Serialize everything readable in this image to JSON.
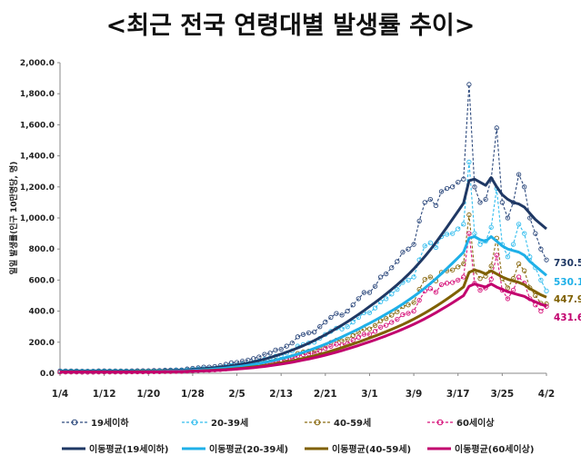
{
  "page_title": "<최근 전국 연령대별 발생률 추이>",
  "chart_data": {
    "type": "line",
    "title": "<최근 전국 연령대별 발생률 추이>",
    "ylabel": "일일 발생률(인구 10만명당, 명)",
    "xlabel": "",
    "ylim": [
      0,
      2000
    ],
    "yticks": [
      0,
      200,
      400,
      600,
      800,
      1000,
      1200,
      1400,
      1600,
      1800,
      2000
    ],
    "ytick_labels": [
      "0.0",
      "200.0",
      "400.0",
      "600.0",
      "800.0",
      "1,000.0",
      "1,200.0",
      "1,400.0",
      "1,600.0",
      "1,800.0",
      "2,000.0"
    ],
    "xticks": [
      0,
      8,
      16,
      24,
      32,
      40,
      48,
      56,
      64,
      72,
      80,
      88
    ],
    "xtick_labels": [
      "1/4",
      "1/12",
      "1/20",
      "1/28",
      "2/5",
      "2/13",
      "2/21",
      "3/1",
      "3/9",
      "3/17",
      "3/25",
      "4/2"
    ],
    "n_days": 89,
    "daily_series": [
      {
        "name": "19세이하",
        "color": "#2E4A7D",
        "values": [
          15,
          15,
          15,
          15,
          14,
          14,
          14,
          16,
          16,
          15,
          15,
          15,
          15,
          16,
          17,
          17,
          17,
          18,
          18,
          20,
          21,
          22,
          22,
          28,
          32,
          36,
          40,
          40,
          44,
          49,
          58,
          68,
          70,
          78,
          85,
          95,
          105,
          122,
          130,
          150,
          155,
          175,
          195,
          235,
          250,
          260,
          265,
          300,
          330,
          360,
          385,
          375,
          400,
          440,
          480,
          520,
          520,
          560,
          620,
          640,
          680,
          720,
          780,
          800,
          830,
          980,
          1100,
          1120,
          1080,
          1170,
          1190,
          1200,
          1230,
          1250,
          1860,
          1200,
          1100,
          1120,
          1250,
          1580,
          1100,
          1000,
          1100,
          1280,
          1200,
          1000,
          900,
          800,
          730
        ]
      },
      {
        "name": "20-39세",
        "color": "#33BDEE",
        "values": [
          12,
          12,
          12,
          12,
          11,
          11,
          11,
          12,
          12,
          12,
          12,
          12,
          12,
          13,
          13,
          13,
          14,
          14,
          15,
          16,
          17,
          18,
          18,
          22,
          25,
          28,
          30,
          30,
          33,
          37,
          43,
          50,
          52,
          58,
          63,
          70,
          78,
          90,
          98,
          110,
          115,
          130,
          145,
          175,
          185,
          195,
          200,
          225,
          250,
          270,
          290,
          285,
          300,
          330,
          360,
          390,
          390,
          420,
          460,
          480,
          510,
          540,
          585,
          600,
          620,
          730,
          820,
          840,
          810,
          880,
          895,
          900,
          930,
          960,
          1360,
          900,
          830,
          850,
          940,
          1190,
          830,
          750,
          830,
          960,
          900,
          750,
          680,
          600,
          530
        ]
      },
      {
        "name": "40-59세",
        "color": "#8A6A12",
        "values": [
          9,
          9,
          9,
          9,
          8,
          8,
          8,
          9,
          9,
          9,
          9,
          9,
          9,
          10,
          10,
          10,
          10,
          11,
          11,
          12,
          12,
          13,
          13,
          16,
          18,
          20,
          22,
          22,
          25,
          27,
          32,
          37,
          38,
          43,
          47,
          52,
          58,
          66,
          72,
          82,
          85,
          96,
          107,
          128,
          137,
          143,
          146,
          165,
          180,
          198,
          213,
          208,
          220,
          243,
          264,
          286,
          286,
          308,
          338,
          352,
          374,
          396,
          430,
          440,
          456,
          540,
          605,
          620,
          595,
          650,
          660,
          665,
          685,
          705,
          1020,
          660,
          610,
          625,
          690,
          870,
          610,
          550,
          610,
          705,
          660,
          550,
          500,
          450,
          447
        ]
      },
      {
        "name": "60세이상",
        "color": "#D6127A",
        "values": [
          8,
          8,
          8,
          8,
          7,
          7,
          7,
          8,
          8,
          8,
          8,
          8,
          8,
          9,
          9,
          9,
          9,
          10,
          10,
          11,
          11,
          12,
          12,
          14,
          16,
          18,
          20,
          20,
          22,
          24,
          28,
          32,
          34,
          38,
          41,
          46,
          51,
          58,
          63,
          72,
          75,
          84,
          94,
          112,
          120,
          125,
          128,
          145,
          160,
          174,
          187,
          183,
          193,
          213,
          232,
          251,
          251,
          270,
          297,
          309,
          328,
          347,
          377,
          386,
          400,
          470,
          530,
          545,
          522,
          570,
          580,
          585,
          600,
          620,
          900,
          580,
          535,
          550,
          605,
          760,
          535,
          480,
          535,
          620,
          580,
          480,
          440,
          400,
          431
        ]
      }
    ],
    "moving_avg_series": [
      {
        "name": "이동평균(19세이하)",
        "color": "#1F3864",
        "values": [
          15,
          15,
          15,
          15,
          15,
          15,
          15,
          15,
          15,
          15,
          15,
          15,
          15,
          15,
          16,
          16,
          16,
          17,
          17,
          18,
          19,
          20,
          21,
          22,
          25,
          27,
          30,
          33,
          36,
          40,
          44,
          49,
          54,
          60,
          66,
          74,
          82,
          91,
          101,
          112,
          124,
          136,
          149,
          163,
          178,
          194,
          211,
          229,
          248,
          268,
          289,
          310,
          332,
          355,
          379,
          404,
          430,
          456,
          483,
          511,
          540,
          570,
          602,
          636,
          672,
          711,
          752,
          796,
          842,
          891,
          941,
          992,
          1043,
          1095,
          1240,
          1250,
          1230,
          1210,
          1260,
          1200,
          1150,
          1120,
          1100,
          1090,
          1070,
          1030,
          990,
          960,
          930
        ]
      },
      {
        "name": "이동평균(20-39세)",
        "color": "#1FB0E8",
        "values": [
          12,
          12,
          12,
          12,
          12,
          12,
          12,
          12,
          12,
          12,
          12,
          12,
          12,
          12,
          13,
          13,
          13,
          13,
          14,
          14,
          15,
          16,
          17,
          18,
          19,
          21,
          23,
          25,
          28,
          31,
          34,
          38,
          42,
          46,
          51,
          57,
          63,
          70,
          77,
          85,
          94,
          103,
          113,
          124,
          135,
          147,
          160,
          173,
          187,
          202,
          218,
          234,
          251,
          268,
          285,
          304,
          322,
          341,
          361,
          381,
          402,
          423,
          446,
          470,
          495,
          521,
          549,
          578,
          609,
          641,
          675,
          709,
          744,
          780,
          870,
          880,
          860,
          850,
          880,
          850,
          820,
          800,
          790,
          780,
          760,
          720,
          690,
          660,
          630
        ]
      },
      {
        "name": "이동평균(40-59세)",
        "color": "#7F6000",
        "values": [
          9,
          9,
          9,
          9,
          9,
          9,
          9,
          9,
          9,
          9,
          9,
          9,
          9,
          9,
          10,
          10,
          10,
          10,
          10,
          11,
          11,
          12,
          12,
          13,
          14,
          15,
          17,
          18,
          20,
          22,
          24,
          27,
          30,
          33,
          37,
          41,
          45,
          50,
          55,
          61,
          67,
          73,
          80,
          88,
          96,
          104,
          113,
          122,
          132,
          143,
          154,
          165,
          177,
          189,
          201,
          214,
          227,
          240,
          254,
          268,
          283,
          298,
          314,
          331,
          349,
          368,
          388,
          409,
          431,
          454,
          478,
          503,
          529,
          556,
          650,
          665,
          655,
          640,
          660,
          640,
          620,
          605,
          595,
          585,
          570,
          545,
          525,
          505,
          490
        ]
      },
      {
        "name": "이동평균(60세이상)",
        "color": "#C2006E",
        "values": [
          8,
          8,
          8,
          8,
          8,
          8,
          8,
          8,
          8,
          8,
          8,
          8,
          8,
          8,
          8,
          8,
          9,
          9,
          9,
          10,
          10,
          11,
          11,
          12,
          13,
          14,
          15,
          16,
          18,
          20,
          22,
          24,
          27,
          30,
          33,
          36,
          40,
          44,
          49,
          54,
          59,
          65,
          71,
          78,
          85,
          92,
          100,
          108,
          117,
          126,
          136,
          146,
          157,
          168,
          179,
          191,
          203,
          215,
          228,
          241,
          255,
          269,
          284,
          300,
          316,
          333,
          351,
          370,
          390,
          411,
          432,
          454,
          477,
          500,
          560,
          575,
          565,
          555,
          575,
          555,
          540,
          525,
          515,
          505,
          495,
          475,
          460,
          445,
          432
        ]
      }
    ],
    "end_labels": [
      {
        "text": "730.5",
        "color": "#1F3864",
        "value": 730.5
      },
      {
        "text": "530.1",
        "color": "#1FB0E8",
        "value": 530.1
      },
      {
        "text": "447.9",
        "color": "#7F6000",
        "value": 447.9
      },
      {
        "text": "431.6",
        "color": "#C2006E",
        "value": 431.6
      }
    ],
    "legend": {
      "placement": "bottom",
      "row1": [
        {
          "label": "19세이하",
          "color": "#2E4A7D",
          "style": "dashed-marker"
        },
        {
          "label": "20-39세",
          "color": "#33BDEE",
          "style": "dashed-marker"
        },
        {
          "label": "40-59세",
          "color": "#8A6A12",
          "style": "dashed-marker"
        },
        {
          "label": "60세이상",
          "color": "#D6127A",
          "style": "dashed-marker"
        }
      ],
      "row2": [
        {
          "label": "이동평균(19세이하)",
          "color": "#1F3864",
          "style": "solid"
        },
        {
          "label": "이동평균(20-39세)",
          "color": "#1FB0E8",
          "style": "solid"
        },
        {
          "label": "이동평균(40-59세)",
          "color": "#7F6000",
          "style": "solid"
        },
        {
          "label": "이동평균(60세이상)",
          "color": "#C2006E",
          "style": "solid"
        }
      ]
    }
  }
}
